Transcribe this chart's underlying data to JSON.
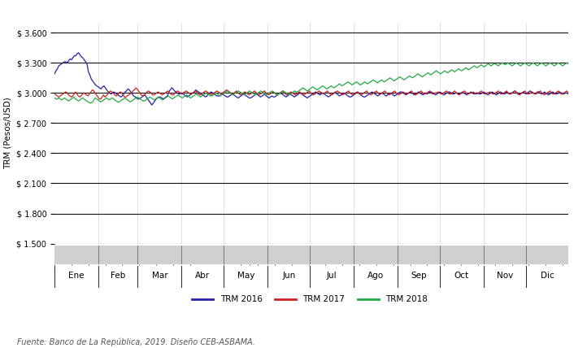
{
  "ylabel": "TRM (Pesos/USD)",
  "ylim": [
    1500,
    3700
  ],
  "yticks": [
    1500,
    1800,
    2100,
    2400,
    2700,
    3000,
    3300,
    3600
  ],
  "ytick_labels": [
    "$ 1.500",
    "$ 1.800",
    "$ 2.100",
    "$ 2.400",
    "$ 2.700",
    "$ 3.000",
    "$ 3.300",
    "$ 3.600"
  ],
  "months": [
    "Ene",
    "Feb",
    "Mar",
    "Abr",
    "May",
    "Jun",
    "Jul",
    "Ago",
    "Sep",
    "Oct",
    "Nov",
    "Dic"
  ],
  "month_days": [
    31,
    28,
    31,
    30,
    31,
    30,
    31,
    31,
    30,
    31,
    30,
    31
  ],
  "color_2016": "#2222aa",
  "color_2017": "#cc2222",
  "color_2018": "#22aa44",
  "legend_labels": [
    "TRM 2016",
    "TRM 2017",
    "TRM 2018"
  ],
  "source_text": "Fuente: Banco de La República, 2019. Diseño CEB-ASBAMA.",
  "bg": "#ffffff",
  "grid_color": "#111111",
  "tick_area_color": "#d0d0d0",
  "trm2016": [
    3190,
    3220,
    3240,
    3270,
    3280,
    3290,
    3300,
    3310,
    3310,
    3300,
    3320,
    3340,
    3330,
    3350,
    3370,
    3370,
    3390,
    3400,
    3380,
    3360,
    3350,
    3330,
    3310,
    3290,
    3210,
    3180,
    3140,
    3120,
    3100,
    3080,
    3070,
    3060,
    3050,
    3040,
    3060,
    3070,
    3050,
    3030,
    3010,
    3000,
    2990,
    3000,
    3010,
    3000,
    2990,
    2980,
    2970,
    2960,
    2970,
    2990,
    3010,
    3020,
    3040,
    3030,
    3010,
    2990,
    2970,
    2960,
    2950,
    2940,
    2940,
    2950,
    2960,
    2970,
    2980,
    2960,
    2940,
    2920,
    2900,
    2880,
    2900,
    2920,
    2940,
    2950,
    2960,
    2960,
    2950,
    2940,
    2950,
    2960,
    2970,
    3010,
    3030,
    3050,
    3040,
    3020,
    3010,
    3000,
    2990,
    2990,
    3000,
    2990,
    2980,
    2970,
    2960,
    2970,
    2980,
    2990,
    3000,
    3010,
    3030,
    3020,
    3010,
    3000,
    2990,
    2980,
    2970,
    2960,
    2970,
    2990,
    3000,
    3010,
    3000,
    2990,
    2980,
    2970,
    2970,
    2970,
    2980,
    2990,
    2980,
    2970,
    2960,
    2960,
    2970,
    2980,
    2990,
    2980,
    2970,
    2960,
    2950,
    2960,
    2970,
    2980,
    2990,
    2980,
    2970,
    2960,
    2950,
    2950,
    2960,
    2970,
    2980,
    2990,
    2980,
    2970,
    2960,
    2970,
    2980,
    2990,
    2970,
    2960,
    2950,
    2960,
    2970,
    2960,
    2960,
    2970,
    2980,
    2990,
    3000,
    2990,
    2980,
    2970,
    2960,
    2970,
    2980,
    2990,
    2980,
    2970,
    2960,
    2970,
    2980,
    2990,
    3000,
    2990,
    2980,
    2970,
    2960,
    2950,
    2960,
    2970,
    2980,
    2990,
    3000,
    3010,
    3000,
    2990,
    2980,
    2990,
    3000,
    2990,
    2980,
    2970,
    2960,
    2970,
    2980,
    2990,
    3000,
    3010,
    2990,
    2980,
    2970,
    2980,
    2990,
    3000,
    2990,
    2980,
    2970,
    2960,
    2960,
    2970,
    2980,
    2990,
    3000,
    3010,
    2990,
    2980,
    2970,
    2960,
    2960,
    2970,
    2980,
    2990,
    3000,
    3010,
    3000,
    2990,
    2980,
    2970,
    2980,
    2990,
    3000,
    2990,
    2980,
    2970,
    2980,
    2990,
    3000,
    2990,
    2980,
    2970,
    2980,
    2990,
    3000,
    3010,
    3010,
    3000,
    2990,
    2980,
    2990,
    3000,
    3010,
    3000,
    2990,
    2980,
    2990,
    3000,
    3010,
    3000,
    2990,
    2980,
    2990,
    3000,
    2990,
    3000,
    3010,
    3010,
    3000,
    2990,
    2980,
    2990,
    3000,
    3010,
    3000,
    2990,
    2980,
    2990,
    3000,
    3010,
    3010,
    3000,
    2990,
    2990,
    3000,
    3000,
    2990,
    2990,
    3000,
    3010,
    3000,
    2990,
    2980,
    2990,
    3000,
    3010,
    3000,
    2990,
    2990,
    3000,
    3000,
    2990,
    2990,
    3000,
    3010,
    3000,
    2990,
    2980,
    2990,
    3000,
    3010,
    3000,
    2990,
    2980,
    2990,
    3000,
    3010,
    3000,
    2990,
    2990,
    3010,
    3000,
    2990,
    2990,
    3000,
    3010,
    3020,
    3010,
    3000,
    2990,
    2990,
    3000,
    3010,
    3000,
    2990,
    3000,
    3010,
    3020,
    3010,
    3000,
    2990,
    2990,
    3010,
    3010,
    3000,
    2990,
    2990,
    3010,
    3000,
    2990,
    2980,
    2990,
    3000,
    3010,
    3000,
    2990,
    2990,
    3000,
    3010,
    3000,
    2990,
    2990,
    3000,
    3000,
    2990
  ],
  "trm2017": [
    2990,
    2980,
    2970,
    2960,
    2970,
    2980,
    2990,
    3000,
    3010,
    3000,
    2980,
    2970,
    2960,
    2970,
    2990,
    3010,
    2990,
    2970,
    2960,
    2970,
    2990,
    3000,
    2990,
    2980,
    2970,
    2990,
    3010,
    3030,
    3020,
    3000,
    2980,
    2960,
    2940,
    2940,
    2960,
    2980,
    2960,
    2970,
    2990,
    3010,
    3020,
    3010,
    3000,
    2980,
    2970,
    2980,
    3000,
    3010,
    3000,
    2980,
    2960,
    2960,
    2970,
    2980,
    2990,
    3000,
    3020,
    3030,
    3050,
    3040,
    3020,
    3000,
    2980,
    2970,
    2980,
    2990,
    3010,
    3020,
    3010,
    3000,
    2980,
    2980,
    2990,
    3000,
    3010,
    3000,
    2990,
    2980,
    2990,
    3000,
    3010,
    3020,
    3000,
    2990,
    2980,
    2980,
    3000,
    3010,
    3020,
    3010,
    3000,
    2990,
    3000,
    3010,
    3020,
    3010,
    3000,
    2990,
    2990,
    3000,
    3010,
    3020,
    3000,
    2990,
    2980,
    2990,
    3000,
    3010,
    3020,
    3010,
    3000,
    2990,
    2980,
    2990,
    3000,
    3010,
    3020,
    3010,
    3000,
    2990,
    3000,
    3010,
    3020,
    3030,
    3020,
    3010,
    3000,
    2990,
    2990,
    3010,
    3020,
    3000,
    2990,
    2980,
    2990,
    3000,
    3010,
    3000,
    2990,
    2980,
    2990,
    3000,
    3010,
    3020,
    3000,
    2990,
    2980,
    2990,
    3000,
    3010,
    3020,
    3000,
    2990,
    2980,
    2990,
    3000,
    3010,
    3000,
    2990,
    2980,
    2990,
    3000,
    3010,
    3020,
    3000,
    2990,
    2980,
    2990,
    3000,
    3010,
    3000,
    2990,
    2980,
    2990,
    3000,
    3010,
    3000,
    2990,
    2980,
    2990,
    3000,
    3010,
    3020,
    3000,
    2990,
    2980,
    2990,
    3000,
    3010,
    3020,
    3010,
    3000,
    2990,
    3000,
    3010,
    3020,
    3000,
    2990,
    2980,
    2990,
    3000,
    3010,
    3020,
    3010,
    3000,
    2990,
    2980,
    2990,
    3000,
    3010,
    3020,
    3000,
    2990,
    2980,
    2990,
    3000,
    3010,
    3000,
    2990,
    2980,
    2990,
    3000,
    3010,
    3020,
    3000,
    2990,
    2980,
    2990,
    3000,
    3010,
    3020,
    3000,
    2990,
    2990,
    3000,
    3010,
    3020,
    3000,
    2990,
    2980,
    2990,
    3000,
    3010,
    3020,
    3000,
    2990,
    2980,
    2990,
    3000,
    3010,
    3000,
    2990,
    2990,
    3000,
    3010,
    3020,
    3000,
    2990,
    2980,
    2990,
    3000,
    3010,
    3020,
    3000,
    2990,
    2990,
    3000,
    3010,
    3020,
    3000,
    2990,
    2990,
    3000,
    3000,
    3010,
    3000,
    2990,
    2990,
    3000,
    3010,
    3020,
    3000,
    2990,
    2990,
    3000,
    3010,
    3020,
    3000,
    2990,
    2980,
    2990,
    3000,
    3010,
    3020,
    3000,
    2990,
    2990,
    3000,
    3000,
    3010,
    3000,
    2990,
    2990,
    3000,
    3010,
    3020,
    3000,
    2990,
    2990,
    3000,
    3000,
    3010,
    3000,
    2990,
    2990,
    3000,
    3010,
    3020,
    3000,
    2990,
    2990,
    3000,
    3010,
    3020,
    3000,
    2990,
    2990,
    3000,
    3010,
    3020,
    3000,
    2990,
    2980,
    2990,
    3000,
    3010,
    3020,
    3000,
    2990,
    2990,
    3000,
    3010,
    3000,
    2990,
    2990,
    3000,
    3010,
    3020,
    3000,
    2990,
    2980,
    2990,
    3000,
    3010,
    3020,
    3000,
    2990,
    2990,
    3000,
    3010,
    3020,
    3000,
    2990,
    2990,
    3000,
    3010,
    3020,
    3000
  ],
  "trm2018": [
    2950,
    2940,
    2940,
    2950,
    2940,
    2930,
    2940,
    2950,
    2940,
    2930,
    2920,
    2930,
    2940,
    2950,
    2960,
    2940,
    2930,
    2920,
    2930,
    2940,
    2950,
    2940,
    2930,
    2920,
    2910,
    2900,
    2900,
    2910,
    2930,
    2950,
    2940,
    2930,
    2920,
    2910,
    2920,
    2930,
    2940,
    2950,
    2940,
    2930,
    2940,
    2950,
    2940,
    2930,
    2920,
    2910,
    2910,
    2920,
    2930,
    2940,
    2950,
    2940,
    2930,
    2920,
    2910,
    2920,
    2930,
    2940,
    2950,
    2960,
    2950,
    2940,
    2930,
    2920,
    2920,
    2930,
    2940,
    2950,
    2960,
    2950,
    2940,
    2930,
    2940,
    2950,
    2960,
    2950,
    2940,
    2930,
    2940,
    2950,
    2960,
    2970,
    2960,
    2950,
    2940,
    2950,
    2960,
    2970,
    2980,
    2970,
    2960,
    2950,
    2960,
    2970,
    2980,
    2970,
    2960,
    2950,
    2960,
    2970,
    2980,
    2990,
    2980,
    2970,
    2960,
    2970,
    2980,
    2990,
    3000,
    2990,
    2980,
    2970,
    2970,
    2980,
    2990,
    3000,
    2990,
    2980,
    2970,
    2980,
    2990,
    3000,
    3010,
    3020,
    3010,
    3000,
    2990,
    2980,
    2990,
    3000,
    3010,
    3020,
    3010,
    3000,
    2990,
    2980,
    2990,
    3000,
    3010,
    3020,
    3010,
    3000,
    2990,
    2980,
    2990,
    3000,
    3010,
    3020,
    3010,
    3000,
    2990,
    2980,
    2990,
    3000,
    3010,
    3020,
    3010,
    3000,
    2990,
    2980,
    2990,
    3000,
    3010,
    3020,
    3010,
    3000,
    2990,
    2980,
    2990,
    3000,
    3010,
    3020,
    3010,
    3010,
    3020,
    3030,
    3040,
    3050,
    3040,
    3030,
    3020,
    3030,
    3040,
    3050,
    3060,
    3050,
    3040,
    3030,
    3040,
    3050,
    3060,
    3070,
    3060,
    3050,
    3040,
    3050,
    3060,
    3070,
    3060,
    3050,
    3060,
    3070,
    3080,
    3090,
    3080,
    3070,
    3080,
    3090,
    3100,
    3110,
    3100,
    3090,
    3080,
    3090,
    3100,
    3110,
    3100,
    3090,
    3080,
    3090,
    3100,
    3110,
    3100,
    3090,
    3100,
    3110,
    3120,
    3130,
    3120,
    3110,
    3100,
    3110,
    3120,
    3130,
    3120,
    3110,
    3120,
    3130,
    3140,
    3150,
    3140,
    3130,
    3120,
    3130,
    3140,
    3150,
    3160,
    3150,
    3140,
    3130,
    3140,
    3150,
    3160,
    3170,
    3160,
    3150,
    3160,
    3170,
    3180,
    3190,
    3180,
    3170,
    3160,
    3170,
    3180,
    3190,
    3200,
    3190,
    3180,
    3190,
    3200,
    3210,
    3220,
    3210,
    3200,
    3190,
    3200,
    3210,
    3220,
    3210,
    3200,
    3210,
    3220,
    3230,
    3220,
    3210,
    3220,
    3230,
    3240,
    3230,
    3220,
    3230,
    3240,
    3250,
    3240,
    3230,
    3240,
    3250,
    3260,
    3270,
    3260,
    3250,
    3260,
    3270,
    3280,
    3270,
    3260,
    3270,
    3280,
    3290,
    3280,
    3270,
    3280,
    3290,
    3290,
    3280,
    3270,
    3280,
    3290,
    3300,
    3290,
    3280,
    3290,
    3300,
    3290,
    3280,
    3270,
    3280,
    3290,
    3300,
    3290,
    3280,
    3270,
    3280,
    3290,
    3300,
    3290,
    3280,
    3270,
    3280,
    3290,
    3300,
    3290,
    3280,
    3270,
    3280,
    3290,
    3300,
    3290,
    3280,
    3270,
    3280,
    3290,
    3300,
    3290,
    3280,
    3270,
    3280,
    3290,
    3300,
    3290,
    3280,
    3270,
    3280,
    3290,
    3300,
    3290
  ]
}
